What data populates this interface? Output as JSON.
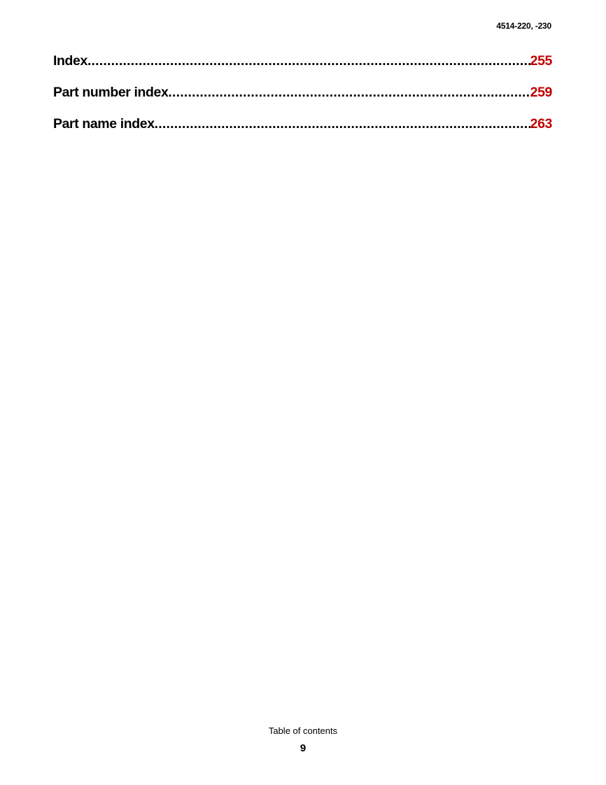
{
  "header": {
    "doc_number": "4514-220, -230"
  },
  "toc": {
    "entries": [
      {
        "title": "Index",
        "page": "255"
      },
      {
        "title": "Part number index",
        "page": "259"
      },
      {
        "title": "Part name index",
        "page": "263"
      }
    ]
  },
  "footer": {
    "section": "Table of contents",
    "page_number": "9"
  },
  "colors": {
    "page_number_link": "#c00000"
  }
}
